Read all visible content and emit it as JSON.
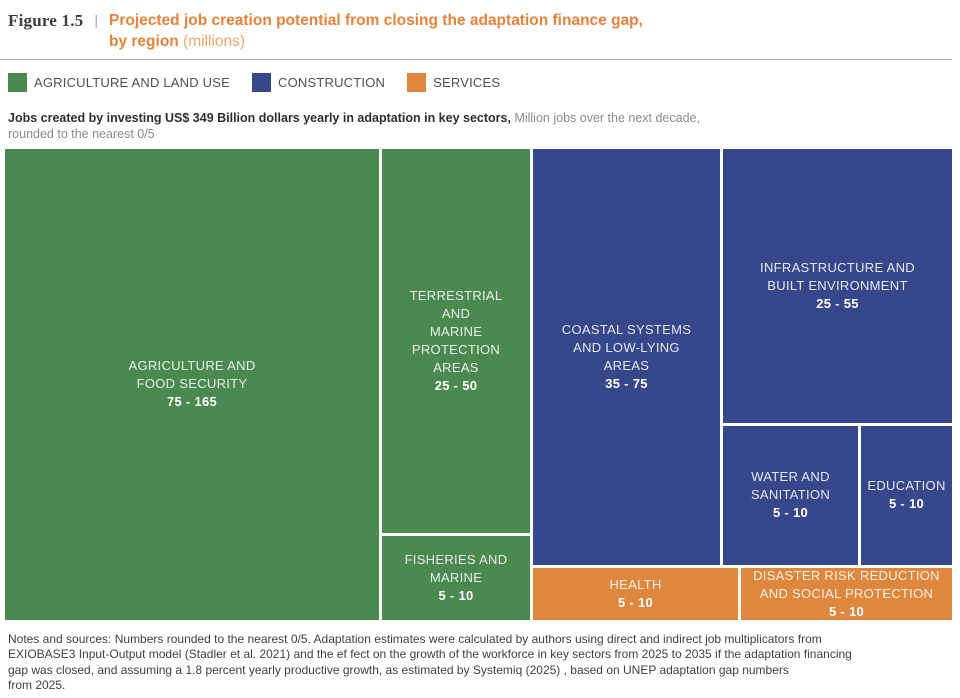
{
  "figure": {
    "label": "Figure 1.5",
    "separator": "|",
    "title_line1": "Projected job creation potential from closing the adaptation finance gap,",
    "title_line2_bold": "by region",
    "title_line2_suffix": " (millions)"
  },
  "legend": [
    {
      "label": "AGRICULTURE AND LAND USE",
      "color": "#4a8a50"
    },
    {
      "label": "CONSTRUCTION",
      "color": "#36478c"
    },
    {
      "label": "SERVICES",
      "color": "#e0873e"
    }
  ],
  "subtitle": {
    "bold": "Jobs created by investing US$ 349 Billion dollars yearly in adaptation in key sectors,",
    "regular": " Million jobs over the next decade,\nrounded to the nearest 0/5"
  },
  "colors": {
    "agriculture": "#4a8a50",
    "construction": "#36478c",
    "services": "#e0873e",
    "title_orange": "#e8813a"
  },
  "treemap": {
    "tiles": [
      {
        "id": "agriculture-food-security",
        "sector": "AGRICULTURE AND LAND USE",
        "lines": [
          "AGRICULTURE AND",
          "FOOD SECURITY"
        ],
        "value": "75 - 165"
      },
      {
        "id": "terrestrial-marine-protection",
        "sector": "AGRICULTURE AND LAND USE",
        "lines": [
          "TERRESTRIAL",
          "AND",
          "MARINE",
          "PROTECTION",
          "AREAS"
        ],
        "value": "25 - 50"
      },
      {
        "id": "fisheries-marine",
        "sector": "AGRICULTURE AND LAND USE",
        "lines": [
          "FISHERIES AND",
          "MARINE"
        ],
        "value": "5 - 10"
      },
      {
        "id": "coastal-systems",
        "sector": "CONSTRUCTION",
        "lines": [
          "COASTAL SYSTEMS",
          "AND LOW-LYING",
          "AREAS"
        ],
        "value": "35 - 75"
      },
      {
        "id": "infrastructure-built-environment",
        "sector": "CONSTRUCTION",
        "lines": [
          "INFRASTRUCTURE AND",
          "BUILT ENVIRONMENT"
        ],
        "value": "25 - 55"
      },
      {
        "id": "water-sanitation",
        "sector": "CONSTRUCTION",
        "lines": [
          "WATER AND",
          "SANITATION"
        ],
        "value": "5 - 10"
      },
      {
        "id": "education",
        "sector": "CONSTRUCTION",
        "lines": [
          "EDUCATION"
        ],
        "value": "5 - 10"
      },
      {
        "id": "health",
        "sector": "SERVICES",
        "lines": [
          "HEALTH"
        ],
        "value": "5 - 10"
      },
      {
        "id": "disaster-risk-reduction",
        "sector": "SERVICES",
        "lines": [
          "DISASTER RISK REDUCTION",
          "AND SOCIAL PROTECTION"
        ],
        "value": "5 - 10"
      }
    ]
  },
  "notes": "Notes and sources: Numbers rounded to the nearest 0/5. Adaptation estimates were calculated by authors using direct and indirect job multiplicators from\nEXIOBASE3 Input-Output model (Stadler et al. 2021) and the ef fect on the growth of the workforce in key sectors from 2025 to 2035 if the adaptation financing\ngap was closed, and assuming a 1.8 percent yearly productive growth, as estimated by Systemiq (2025) , based on UNEP adaptation gap numbers\nfrom 2025.",
  "chart_data": {
    "type": "treemap",
    "title": "Projected job creation potential from closing the adaptation finance gap, by region (millions)",
    "subtitle": "Jobs created by investing US$ 349 Billion dollars yearly in adaptation in key sectors, Million jobs over the next decade, rounded to the nearest 0/5",
    "unit": "million jobs over the next decade",
    "legend_position": "top",
    "groups": [
      {
        "name": "AGRICULTURE AND LAND USE",
        "color": "#4a8a50",
        "items": [
          {
            "label": "AGRICULTURE AND FOOD SECURITY",
            "range": "75 - 165",
            "min": 75,
            "max": 165
          },
          {
            "label": "TERRESTRIAL AND MARINE PROTECTION AREAS",
            "range": "25 - 50",
            "min": 25,
            "max": 50
          },
          {
            "label": "FISHERIES AND MARINE",
            "range": "5 - 10",
            "min": 5,
            "max": 10
          }
        ]
      },
      {
        "name": "CONSTRUCTION",
        "color": "#36478c",
        "items": [
          {
            "label": "COASTAL SYSTEMS AND LOW-LYING AREAS",
            "range": "35 - 75",
            "min": 35,
            "max": 75
          },
          {
            "label": "INFRASTRUCTURE AND BUILT ENVIRONMENT",
            "range": "25 - 55",
            "min": 25,
            "max": 55
          },
          {
            "label": "WATER AND SANITATION",
            "range": "5 - 10",
            "min": 5,
            "max": 10
          },
          {
            "label": "EDUCATION",
            "range": "5 - 10",
            "min": 5,
            "max": 10
          }
        ]
      },
      {
        "name": "SERVICES",
        "color": "#e0873e",
        "items": [
          {
            "label": "HEALTH",
            "range": "5 - 10",
            "min": 5,
            "max": 10
          },
          {
            "label": "DISASTER RISK REDUCTION AND SOCIAL PROTECTION",
            "range": "5 - 10",
            "min": 5,
            "max": 10
          }
        ]
      }
    ]
  }
}
